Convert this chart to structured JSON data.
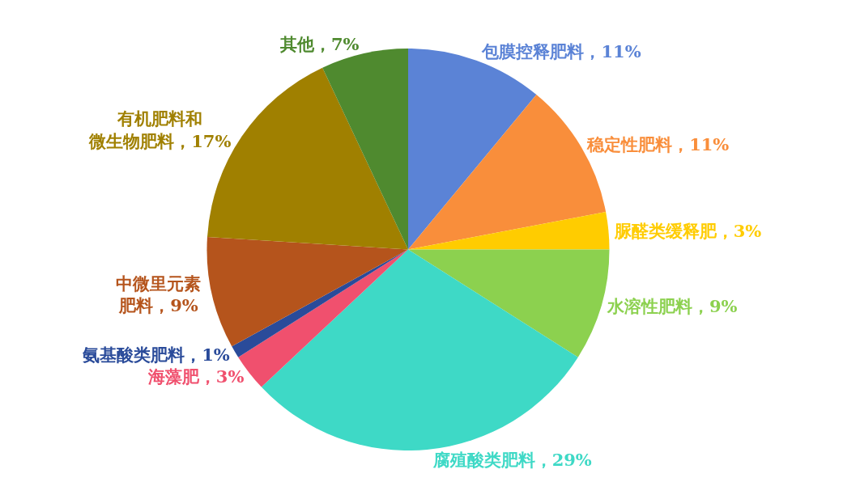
{
  "chart_data": {
    "type": "pie",
    "categories": [
      "包膜控释肥料",
      "稳定性肥料",
      "脲醛类缓释肥",
      "水溶性肥料",
      "腐殖酸类肥料",
      "海藻肥",
      "氨基酸类肥料",
      "中微里元素肥料",
      "有机肥料和微生物肥料",
      "其他"
    ],
    "values": [
      11,
      11,
      3,
      9,
      29,
      3,
      1,
      9,
      17,
      7
    ],
    "value_labels": [
      "11%",
      "11%",
      "3%",
      "9%",
      "29%",
      "3%",
      "1%",
      "9%",
      "17%",
      "7%"
    ],
    "colors": [
      "#5b83d6",
      "#f98e3b",
      "#ffcc00",
      "#8cd14f",
      "#3ed9c6",
      "#f0506e",
      "#2a4b9a",
      "#b5541c",
      "#a08000",
      "#4f8a2f"
    ]
  }
}
